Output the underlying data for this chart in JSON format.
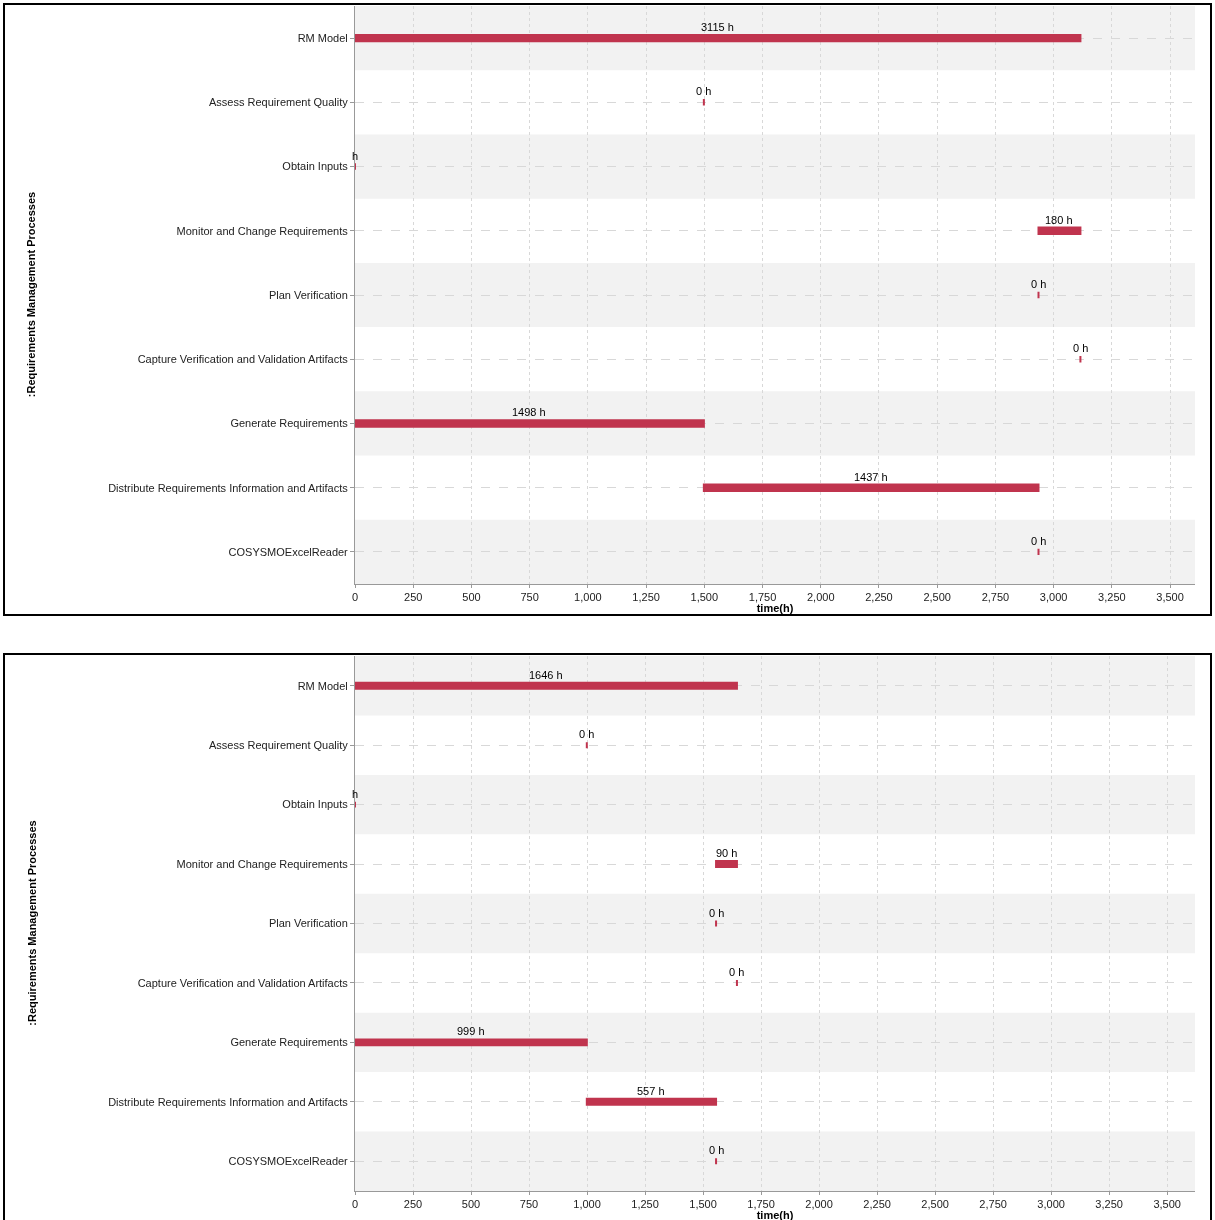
{
  "chart_data": [
    {
      "type": "bar",
      "orientation": "horizontal",
      "xlabel": "time(h)",
      "ylabel": ":Requirements Management Processes",
      "categories": [
        "RM Model",
        "Assess Requirement Quality",
        "Obtain Inputs",
        "Monitor and Change Requirements",
        "Plan Verification",
        "Capture Verification and Validation Artifacts",
        "Generate Requirements",
        "Distribute Requirements Information and Artifacts",
        "COSYSMOExcelReader"
      ],
      "base": [
        0,
        1498,
        0,
        2935,
        2935,
        3115,
        0,
        1498,
        2935
      ],
      "values": [
        3115,
        0,
        0,
        180,
        0,
        0,
        1498,
        1437,
        0
      ],
      "value_labels": [
        "3115 h",
        "0 h",
        "h",
        "180 h",
        "0 h",
        "0 h",
        "1498 h",
        "1437 h",
        "0 h"
      ],
      "color": "#c0344e",
      "xlim": [
        0,
        3607
      ],
      "xticks": [
        0,
        250,
        500,
        750,
        {
          "value": 1000,
          "label": "1,000"
        },
        {
          "value": 1250,
          "label": "1,250"
        },
        {
          "value": 1500,
          "label": "1,500"
        },
        {
          "value": 1750,
          "label": "1,750"
        },
        {
          "value": 2000,
          "label": "2,000"
        },
        {
          "value": 2250,
          "label": "2,250"
        },
        {
          "value": 2500,
          "label": "2,500"
        },
        {
          "value": 2750,
          "label": "2,750"
        },
        {
          "value": 3000,
          "label": "3,000"
        },
        {
          "value": 3250,
          "label": "3,250"
        },
        {
          "value": 3500,
          "label": "3,500"
        }
      ],
      "grid": true,
      "legend": false
    },
    {
      "type": "bar",
      "orientation": "horizontal",
      "xlabel": "time(h)",
      "ylabel": ":Requirements Management Processes",
      "categories": [
        "RM Model",
        "Assess Requirement Quality",
        "Obtain Inputs",
        "Monitor and Change Requirements",
        "Plan Verification",
        "Capture Verification and Validation Artifacts",
        "Generate Requirements",
        "Distribute Requirements Information and Artifacts",
        "COSYSMOExcelReader"
      ],
      "base": [
        0,
        999,
        0,
        1556,
        1556,
        1646,
        0,
        999,
        1556
      ],
      "values": [
        1646,
        0,
        0,
        90,
        0,
        0,
        999,
        557,
        0
      ],
      "value_labels": [
        "1646 h",
        "0 h",
        "h",
        "90 h",
        "0 h",
        "0 h",
        "999 h",
        "557 h",
        "0 h"
      ],
      "color": "#c0344e",
      "xlim": [
        0,
        3620
      ],
      "xticks": [
        0,
        250,
        500,
        750,
        {
          "value": 1000,
          "label": "1,000"
        },
        {
          "value": 1250,
          "label": "1,250"
        },
        {
          "value": 1500,
          "label": "1,500"
        },
        {
          "value": 1750,
          "label": "1,750"
        },
        {
          "value": 2000,
          "label": "2,000"
        },
        {
          "value": 2250,
          "label": "2,250"
        },
        {
          "value": 2500,
          "label": "2,500"
        },
        {
          "value": 2750,
          "label": "2,750"
        },
        {
          "value": 3000,
          "label": "3,000"
        },
        {
          "value": 3250,
          "label": "3,250"
        },
        {
          "value": 3500,
          "label": "3,500"
        }
      ],
      "grid": true,
      "legend": false
    }
  ]
}
